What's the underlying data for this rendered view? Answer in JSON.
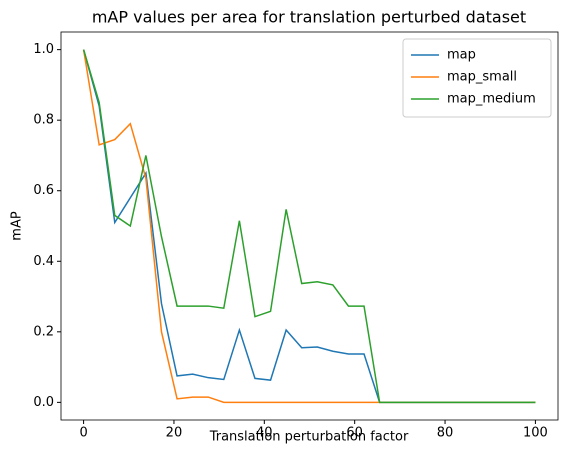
{
  "chart_data": {
    "type": "line",
    "title": "mAP values per area for translation perturbed dataset",
    "xlabel": "Translation perturbation factor",
    "ylabel": "mAP",
    "x": [
      0,
      3.45,
      6.9,
      10.34,
      13.79,
      17.24,
      20.69,
      24.14,
      27.59,
      31.03,
      34.48,
      37.93,
      41.38,
      44.83,
      48.28,
      51.72,
      55.17,
      58.62,
      62.07,
      65.52,
      68.97,
      72.41,
      75.86,
      79.31,
      82.76,
      86.21,
      89.66,
      93.1,
      96.55,
      100
    ],
    "series": [
      {
        "name": "map",
        "color": "#1f77b4",
        "values": [
          1.0,
          0.84,
          0.51,
          0.58,
          0.65,
          0.28,
          0.075,
          0.08,
          0.07,
          0.065,
          0.205,
          0.068,
          0.063,
          0.205,
          0.155,
          0.157,
          0.145,
          0.137,
          0.137,
          0,
          0,
          0,
          0,
          0,
          0,
          0,
          0,
          0,
          0,
          0
        ]
      },
      {
        "name": "map_small",
        "color": "#ff7f0e",
        "values": [
          1.0,
          0.73,
          0.745,
          0.79,
          0.635,
          0.2,
          0.01,
          0.015,
          0.015,
          0,
          0,
          0,
          0,
          0,
          0,
          0,
          0,
          0,
          0,
          0,
          0,
          0,
          0,
          0,
          0,
          0,
          0,
          0,
          0,
          0
        ]
      },
      {
        "name": "map_medium",
        "color": "#2ca02c",
        "values": [
          1.0,
          0.85,
          0.53,
          0.5,
          0.7,
          0.47,
          0.273,
          0.273,
          0.273,
          0.267,
          0.515,
          0.243,
          0.258,
          0.547,
          0.337,
          0.342,
          0.333,
          0.273,
          0.273,
          0,
          0,
          0,
          0,
          0,
          0,
          0,
          0,
          0,
          0,
          0
        ]
      }
    ],
    "xlim": [
      -5,
      105
    ],
    "xticks": [
      0,
      20,
      40,
      60,
      80,
      100
    ],
    "ylim": [
      -0.05,
      1.05
    ],
    "yticks": [
      {
        "value": 0,
        "label": "0.0"
      },
      0.2,
      0.4,
      0.6,
      0.8,
      {
        "value": 1,
        "label": "1.0"
      }
    ],
    "legend": "upper right"
  }
}
